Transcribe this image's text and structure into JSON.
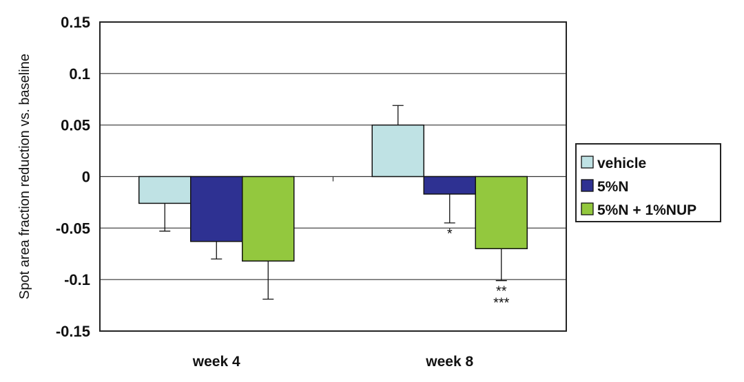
{
  "chart_data": {
    "type": "bar",
    "categories": [
      "week 4",
      "week 8"
    ],
    "series": [
      {
        "name": "vehicle",
        "values": [
          -0.026,
          0.05
        ],
        "errors": [
          0.027,
          0.019
        ],
        "color": "#bfe2e4"
      },
      {
        "name": "5%N",
        "values": [
          -0.063,
          -0.017
        ],
        "errors": [
          0.017,
          0.028
        ],
        "color": "#2e3192"
      },
      {
        "name": "5%N + 1%NUP",
        "values": [
          -0.082,
          -0.07
        ],
        "errors": [
          0.037,
          0.031
        ],
        "color": "#93c83e"
      }
    ],
    "ylabel": "Spot area fraction reduction vs. baseline",
    "xlabel": "",
    "ylim": [
      -0.15,
      0.15
    ],
    "yticks": [
      {
        "value": 0.15,
        "label": "0.15"
      },
      {
        "value": 0.1,
        "label": "0.1"
      },
      {
        "value": 0.05,
        "label": "0.05"
      },
      {
        "value": 0,
        "label": "0"
      },
      {
        "value": -0.05,
        "label": "-0.05"
      },
      {
        "value": -0.1,
        "label": "-0.1"
      },
      {
        "value": -0.15,
        "label": "-0.15"
      }
    ],
    "grid": true,
    "legend": "right",
    "annotations": [
      {
        "category": 1,
        "series": 1,
        "lines": [
          "*"
        ]
      },
      {
        "category": 1,
        "series": 2,
        "lines": [
          "**",
          "***"
        ]
      }
    ]
  }
}
